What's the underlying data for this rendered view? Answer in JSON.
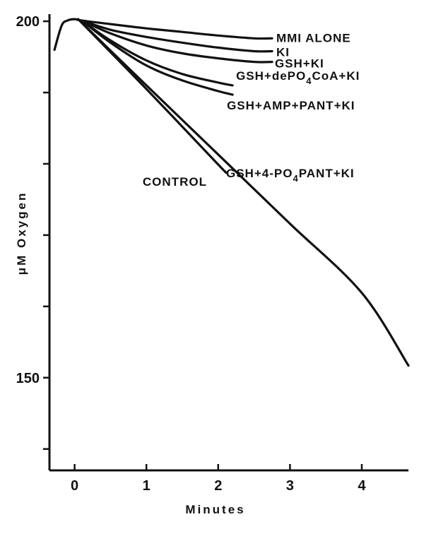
{
  "chart_data": {
    "type": "line",
    "title": "",
    "xlabel": "Minutes",
    "ylabel": "μM Oxygen",
    "xlim": [
      -0.35,
      4.65
    ],
    "ylim": [
      137,
      201
    ],
    "x_ticks": [
      0,
      1,
      2,
      3,
      4
    ],
    "x_tick_labels": [
      "0",
      "1",
      "2",
      "3",
      "4"
    ],
    "y_ticks": [
      140,
      150,
      160,
      170,
      180,
      190,
      200
    ],
    "y_tick_labels": [
      "",
      "150",
      "",
      "",
      "",
      "",
      "200"
    ],
    "grid": false,
    "legend": "inline labels at line ends",
    "series": [
      {
        "name": "MMI ALONE",
        "x": [
          -0.28,
          -0.18,
          -0.1,
          0.0,
          0.1,
          0.5,
          1.0,
          1.5,
          2.0,
          2.5,
          2.75
        ],
        "y": [
          196.0,
          199.4,
          200.1,
          200.3,
          200.1,
          199.6,
          199.0,
          198.5,
          198.0,
          197.6,
          197.6
        ]
      },
      {
        "name": "KI",
        "x": [
          0.1,
          0.5,
          1.0,
          1.5,
          2.0,
          2.5,
          2.75
        ],
        "y": [
          200.1,
          198.8,
          197.8,
          197.0,
          196.3,
          195.8,
          195.8
        ]
      },
      {
        "name": "GSH+KI",
        "x": [
          0.1,
          0.5,
          1.0,
          1.5,
          2.0,
          2.5,
          2.75
        ],
        "y": [
          200.1,
          198.3,
          196.6,
          195.5,
          194.8,
          194.3,
          194.3
        ]
      },
      {
        "name": "GSH+dePO4CoA+KI",
        "x": [
          0.1,
          0.5,
          1.0,
          1.5,
          2.0,
          2.2
        ],
        "y": [
          200.1,
          197.3,
          194.5,
          192.6,
          191.4,
          191.0
        ]
      },
      {
        "name": "GSH+AMP+PANT+KI",
        "x": [
          0.1,
          0.5,
          1.0,
          1.5,
          2.0,
          2.2
        ],
        "y": [
          200.1,
          197.0,
          193.8,
          191.7,
          190.2,
          189.7
        ]
      },
      {
        "name": "GSH+4-PO4PANT+KI",
        "x": [
          0.05,
          1.0,
          2.0,
          3.0,
          4.0,
          4.65
        ],
        "y": [
          200.3,
          191.0,
          181.3,
          171.6,
          161.9,
          151.7
        ]
      },
      {
        "name": "CONTROL",
        "x": [
          0.05,
          1.0,
          2.0,
          2.1
        ],
        "y": [
          200.3,
          190.5,
          179.9,
          178.9
        ]
      }
    ],
    "labels": [
      {
        "text": "MMI ALONE",
        "series": "MMI ALONE"
      },
      {
        "text": "KI",
        "series": "KI"
      },
      {
        "text": "GSH+KI",
        "series": "GSH+KI"
      },
      {
        "text": "GSH+dePO",
        "sub": "4",
        "text2": "CoA+KI",
        "series": "GSH+dePO4CoA+KI"
      },
      {
        "text": "GSH+AMP+PANT+KI",
        "series": "GSH+AMP+PANT+KI"
      },
      {
        "text": "GSH+4-PO",
        "sub": "4",
        "text2": "PANT+KI",
        "series": "GSH+4-PO4PANT+KI"
      },
      {
        "text": "CONTROL",
        "series": "CONTROL"
      }
    ]
  }
}
